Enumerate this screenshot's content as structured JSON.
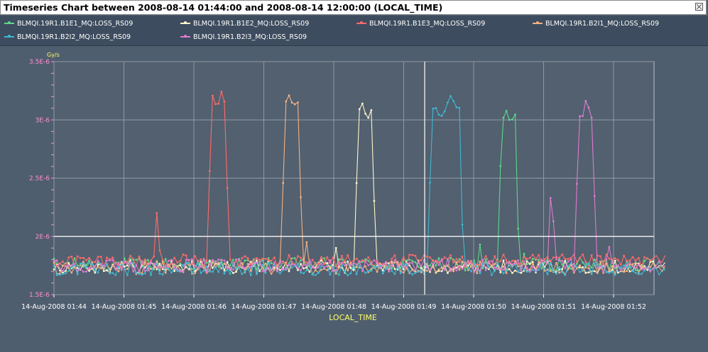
{
  "window": {
    "title": "Timeseries Chart between 2008-08-14 01:44:00 and 2008-08-14 12:00:00 (LOCAL_TIME)"
  },
  "chart_data": {
    "type": "line",
    "title": "Timeseries Chart between 2008-08-14 01:44:00 and 2008-08-14 12:00:00 (LOCAL_TIME)",
    "xlabel": "LOCAL_TIME",
    "ylabel": "Gy/s",
    "ylim": [
      1.5e-06,
      3.5e-06
    ],
    "xlim_minutes": [
      0,
      8.75
    ],
    "y_ticks": [
      "1.5E-6",
      "2E-6",
      "2.5E-6",
      "3E-6",
      "3.5E-6"
    ],
    "y_tick_values": [
      1.5e-06,
      2e-06,
      2.5e-06,
      3e-06,
      3.5e-06
    ],
    "x_ticks": [
      "14-Aug-2008 01:44",
      "14-Aug-2008 01:45",
      "14-Aug-2008 01:46",
      "14-Aug-2008 01:47",
      "14-Aug-2008 01:48",
      "14-Aug-2008 01:49",
      "14-Aug-2008 01:50",
      "14-Aug-2008 01:51",
      "14-Aug-2008 01:52"
    ],
    "x_tick_values": [
      0,
      1,
      2,
      3,
      4,
      5,
      6,
      7,
      8
    ],
    "grid": true,
    "marker_line": {
      "y": 2e-06,
      "x": 5.3
    },
    "legend_position": "top",
    "series": [
      {
        "name": "BLMQI.19R1.B1E1_MQ:LOSS_RS09",
        "color": "#5fd68a",
        "baseline": 1.76e-06,
        "spikes": [
          [
            6.1,
            1.93e-06
          ],
          [
            6.7,
            1.85e-06
          ]
        ],
        "plateau": {
          "start": 6.35,
          "end": 6.65,
          "level": 3e-06
        }
      },
      {
        "name": "BLMQI.19R1.B1E2_MQ:LOSS_RS09",
        "color": "#fff5cc",
        "baseline": 1.74e-06,
        "spikes": [
          [
            4.05,
            1.9e-06
          ]
        ],
        "plateau": {
          "start": 4.3,
          "end": 4.6,
          "level": 3.08e-06
        }
      },
      {
        "name": "BLMQI.19R1.B1E3_MQ:LOSS_RS09",
        "color": "#ff6b6b",
        "baseline": 1.79e-06,
        "spikes": [
          [
            1.45,
            2.2e-06
          ],
          [
            1.5,
            1.88e-06
          ]
        ],
        "plateau": {
          "start": 2.2,
          "end": 2.5,
          "level": 3.15e-06
        }
      },
      {
        "name": "BLMQI.19R1.B2I1_MQ:LOSS_RS09",
        "color": "#f4b183",
        "baseline": 1.73e-06,
        "spikes": [
          [
            3.6,
            1.95e-06
          ]
        ],
        "plateau": {
          "start": 3.25,
          "end": 3.55,
          "level": 3.13e-06
        }
      },
      {
        "name": "BLMQI.19R1.B2I2_MQ:LOSS_RS09",
        "color": "#3fb8d4",
        "baseline": 1.72e-06,
        "spikes": [],
        "plateau": {
          "start": 5.35,
          "end": 5.85,
          "level": 3.1e-06
        }
      },
      {
        "name": "BLMQI.19R1.B2I3_MQ:LOSS_RS09",
        "color": "#e07ad0",
        "baseline": 1.75e-06,
        "spikes": [
          [
            7.1,
            2.33e-06
          ],
          [
            7.15,
            2.13e-06
          ],
          [
            7.95,
            1.91e-06
          ]
        ],
        "plateau": {
          "start": 7.45,
          "end": 7.75,
          "level": 3.1e-06
        }
      }
    ]
  }
}
